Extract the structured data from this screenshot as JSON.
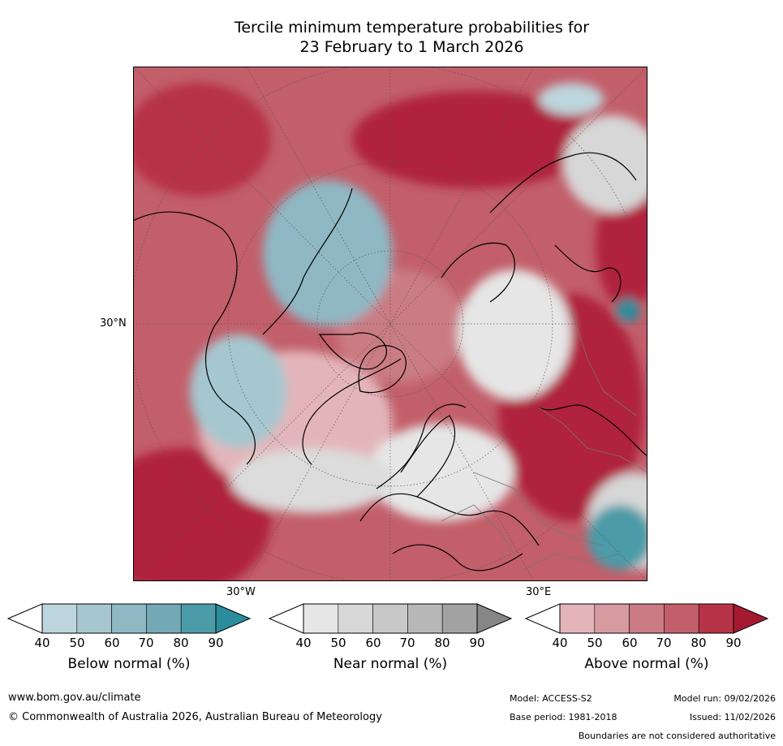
{
  "title": {
    "line1": "Tercile minimum temperature probabilities for",
    "line2": "23 February to 1 March 2026"
  },
  "map": {
    "projection": "north-polar-stereographic",
    "labels": {
      "lat_30": "30°N",
      "lon_w30": "30°W",
      "lon_e30": "30°E"
    }
  },
  "colorbars": [
    {
      "name": "below",
      "label": "Below normal (%)",
      "ticks": [
        "40",
        "50",
        "60",
        "70",
        "80",
        "90"
      ],
      "colors": [
        "#bdd5dc",
        "#a6c7cf",
        "#8fb8c4",
        "#72a9b5",
        "#4c9ba8",
        "#2a8c9c"
      ]
    },
    {
      "name": "near",
      "label": "Near normal (%)",
      "ticks": [
        "40",
        "50",
        "60",
        "70",
        "80",
        "90"
      ],
      "colors": [
        "#e6e6e6",
        "#d7d7d7",
        "#c8c8c8",
        "#b8b8b8",
        "#a2a2a2",
        "#868686"
      ]
    },
    {
      "name": "above",
      "label": "Above normal (%)",
      "ticks": [
        "40",
        "50",
        "60",
        "70",
        "80",
        "90"
      ],
      "colors": [
        "#e3b5ba",
        "#d89aa1",
        "#ca7b84",
        "#c25f6a",
        "#b73346",
        "#a51a30"
      ]
    }
  ],
  "footer": {
    "url": "www.bom.gov.au/climate",
    "copyright": "© Commonwealth of Australia 2026, Australian Bureau of Meteorology",
    "model": "Model: ACCESS-S2",
    "model_run": "Model run: 09/02/2026",
    "base_period": "Base period: 1981-2018",
    "issued": "Issued: 11/02/2026",
    "disclaimer": "Boundaries are not considered authoritative"
  }
}
